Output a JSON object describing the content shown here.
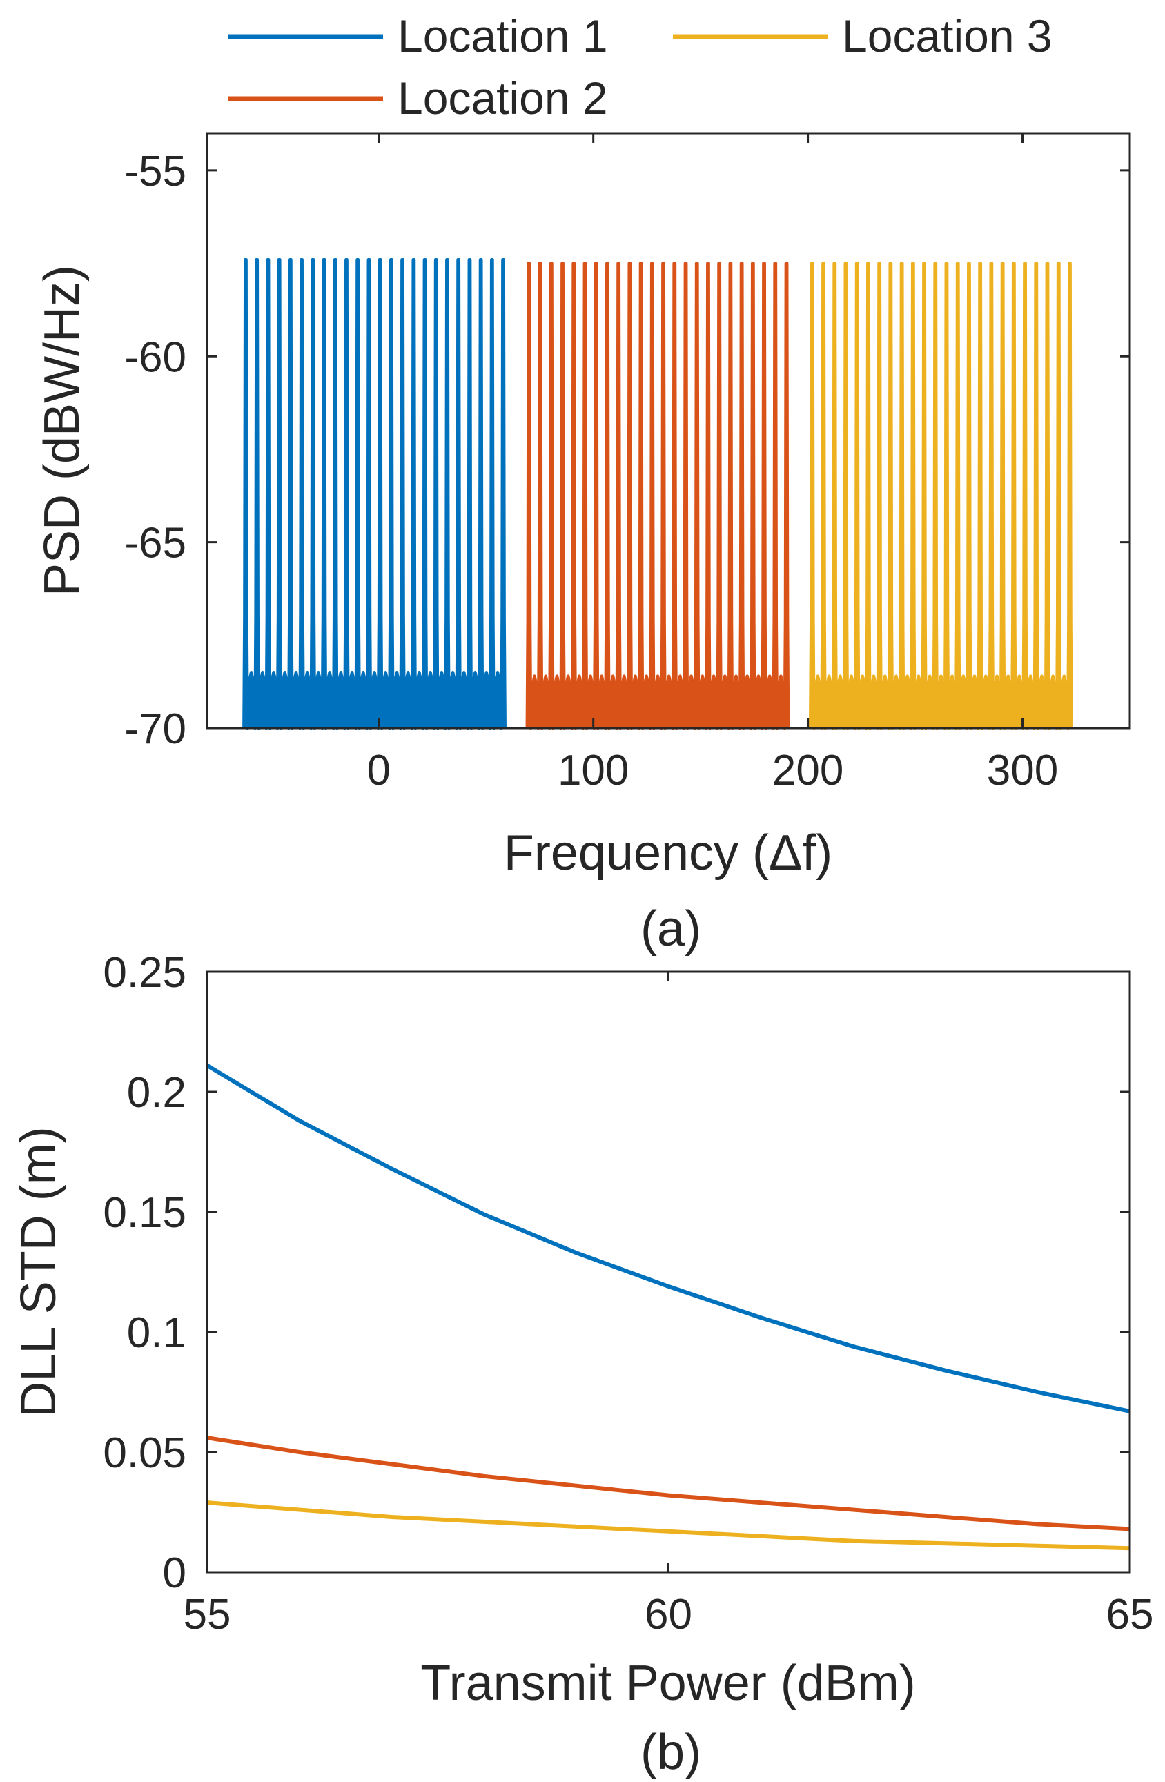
{
  "colors": {
    "series1": "#0072bd",
    "series2": "#d95319",
    "series3": "#edb120",
    "axis": "#262626"
  },
  "legend": {
    "placement": "top",
    "items": [
      {
        "label": "Location 1",
        "color": "#0072bd"
      },
      {
        "label": "Location 3",
        "color": "#edb120"
      },
      {
        "label": "Location 2",
        "color": "#d95319"
      }
    ]
  },
  "chart_data": [
    {
      "type": "line",
      "caption": "(a)",
      "xlabel_text": "Frequency (",
      "xlabel_symbol": "Δ",
      "xlabel_end": "f)",
      "ylabel": "PSD (dBW/Hz)",
      "xlim": [
        -80,
        350
      ],
      "ylim": [
        -70,
        -54
      ],
      "xticks": [
        0,
        100,
        200,
        300
      ],
      "yticks": [
        -70,
        -65,
        -60,
        -55
      ],
      "xtick_labels": [
        "0",
        "100",
        "200",
        "300"
      ],
      "ytick_labels": [
        "-70",
        "-65",
        "-60",
        "-55"
      ],
      "series": [
        {
          "name": "Location 1",
          "color": "#0072bd",
          "x_range": [
            -62,
            58
          ],
          "subcarriers": 24,
          "peak": -57.7,
          "sidelobe": -68.5,
          "floor": -70
        },
        {
          "name": "Location 2",
          "color": "#d95319",
          "x_range": [
            70,
            190
          ],
          "subcarriers": 24,
          "peak": -57.8,
          "sidelobe": -68.6,
          "floor": -70
        },
        {
          "name": "Location 3",
          "color": "#edb120",
          "x_range": [
            202,
            322
          ],
          "subcarriers": 24,
          "peak": -57.8,
          "sidelobe": -68.6,
          "floor": -70
        }
      ]
    },
    {
      "type": "line",
      "caption": "(b)",
      "xlabel": "Transmit Power (dBm)",
      "ylabel": "DLL STD (m)",
      "xlim": [
        55,
        65
      ],
      "ylim": [
        0,
        0.25
      ],
      "xticks": [
        55,
        60,
        65
      ],
      "yticks": [
        0,
        0.05,
        0.1,
        0.15,
        0.2,
        0.25
      ],
      "xtick_labels": [
        "55",
        "60",
        "65"
      ],
      "ytick_labels": [
        "0",
        "0.05",
        "0.1",
        "0.15",
        "0.2",
        "0.25"
      ],
      "series": [
        {
          "name": "Location 1",
          "color": "#0072bd",
          "x": [
            55,
            56,
            57,
            58,
            59,
            60,
            61,
            62,
            63,
            64,
            65
          ],
          "y": [
            0.211,
            0.188,
            0.168,
            0.149,
            0.133,
            0.119,
            0.106,
            0.094,
            0.084,
            0.075,
            0.067
          ]
        },
        {
          "name": "Location 2",
          "color": "#d95319",
          "x": [
            55,
            56,
            57,
            58,
            59,
            60,
            61,
            62,
            63,
            64,
            65
          ],
          "y": [
            0.056,
            0.05,
            0.045,
            0.04,
            0.036,
            0.032,
            0.029,
            0.026,
            0.023,
            0.02,
            0.018
          ]
        },
        {
          "name": "Location 3",
          "color": "#edb120",
          "x": [
            55,
            56,
            57,
            58,
            59,
            60,
            61,
            62,
            63,
            64,
            65
          ],
          "y": [
            0.029,
            0.026,
            0.023,
            0.021,
            0.019,
            0.017,
            0.015,
            0.013,
            0.012,
            0.011,
            0.01
          ]
        }
      ]
    }
  ]
}
